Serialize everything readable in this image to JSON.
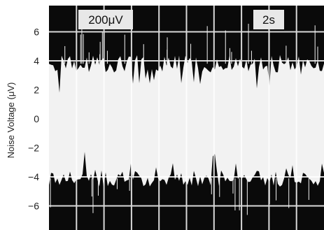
{
  "chart_data": {
    "type": "line",
    "title": "",
    "xlabel": "",
    "ylabel": "Noise Voltage (μV)",
    "ylim": [
      -7.6,
      8.2
    ],
    "yticks": [
      6,
      4,
      2,
      0,
      -2,
      -4,
      -6
    ],
    "ytick_labels": [
      "6",
      "4",
      "2",
      "0",
      "−2",
      "−4",
      "−6"
    ],
    "grid": true,
    "series": [
      {
        "band_upper_envelope": 3.8,
        "band_lower_envelope": -4.1
      }
    ],
    "annotations": {
      "vertical_scale": "200μV",
      "time_scale": "2s"
    },
    "colors": {
      "screen": "#0a0a0a",
      "grid": "#d8d8d8",
      "trace": "#ffffff"
    }
  }
}
